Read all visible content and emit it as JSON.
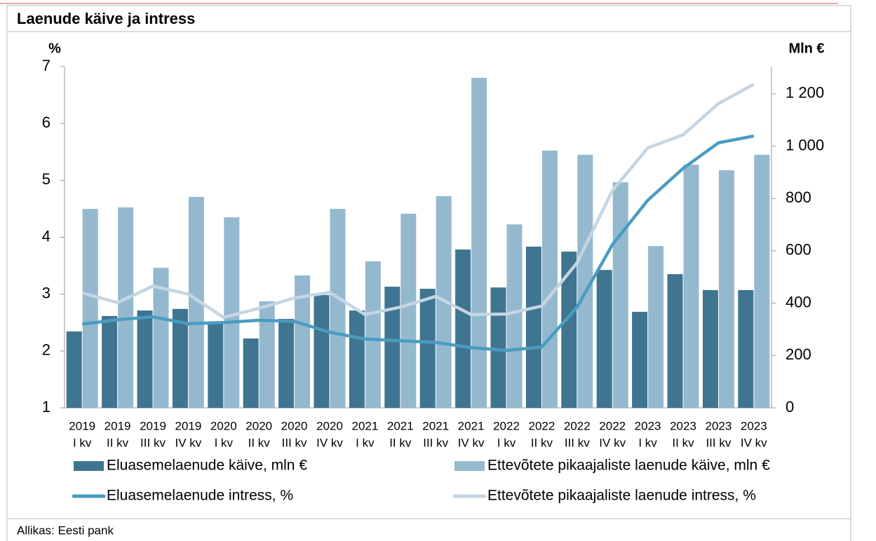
{
  "chart_data": {
    "type": "bar",
    "title": "Laenude käive ja intress",
    "ylabel": "%",
    "y2label": "Mln €",
    "source": "Allikas: Eesti pank",
    "categories": [
      [
        "2019",
        "I kv"
      ],
      [
        "2019",
        "II kv"
      ],
      [
        "2019",
        "III kv"
      ],
      [
        "2019",
        "IV kv"
      ],
      [
        "2020",
        "I kv"
      ],
      [
        "2020",
        "II kv"
      ],
      [
        "2020",
        "III kv"
      ],
      [
        "2020",
        "IV kv"
      ],
      [
        "2021",
        "I kv"
      ],
      [
        "2021",
        "II kv"
      ],
      [
        "2021",
        "III kv"
      ],
      [
        "2021",
        "IV kv"
      ],
      [
        "2022",
        "I kv"
      ],
      [
        "2022",
        "II kv"
      ],
      [
        "2022",
        "III kv"
      ],
      [
        "2022",
        "IV kv"
      ],
      [
        "2023",
        "I kv"
      ],
      [
        "2023",
        "II kv"
      ],
      [
        "2023",
        "III kv"
      ],
      [
        "2023",
        "IV kv"
      ]
    ],
    "series": [
      {
        "name": "Eluasemelaenude käive, mln €",
        "type": "bar",
        "axis": "y2",
        "color": "#3f7590",
        "values": [
          292,
          351,
          372,
          378,
          329,
          265,
          340,
          431,
          372,
          463,
          455,
          605,
          460,
          616,
          597,
          527,
          367,
          511,
          450,
          450
        ]
      },
      {
        "name": "Ettevõtete pikaajaliste laenude käive, mln €",
        "type": "bar",
        "axis": "y2",
        "color": "#94b9cf",
        "values": [
          760,
          766,
          535,
          806,
          728,
          407,
          506,
          760,
          560,
          742,
          809,
          1261,
          701,
          983,
          967,
          862,
          618,
          929,
          908,
          967
        ]
      },
      {
        "name": "Eluasemelaenude intress, %",
        "type": "line",
        "color": "#4a9cc0",
        "values": [
          2.47,
          2.55,
          2.6,
          2.48,
          2.5,
          2.54,
          2.52,
          2.33,
          2.21,
          2.18,
          2.15,
          2.06,
          2.01,
          2.07,
          2.77,
          3.87,
          4.65,
          5.21,
          5.66,
          5.78
        ]
      },
      {
        "name": "Ettevõtete pikaajaliste laenude intress, %",
        "type": "line",
        "color": "#c5d5e3",
        "values": [
          3.02,
          2.85,
          3.14,
          3.0,
          2.59,
          2.75,
          2.93,
          3.03,
          2.64,
          2.77,
          2.96,
          2.64,
          2.65,
          2.79,
          3.55,
          4.82,
          5.57,
          5.8,
          6.35,
          6.69
        ]
      }
    ],
    "ylim": [
      1,
      7
    ],
    "yticks": [
      1,
      2,
      3,
      4,
      5,
      6,
      7
    ],
    "y2lim": [
      0,
      1304
    ],
    "y2ticks": [
      0,
      200,
      400,
      600,
      800,
      {
        "value": 1000,
        "label": "1 000"
      },
      {
        "value": 1200,
        "label": "1 200"
      }
    ]
  }
}
